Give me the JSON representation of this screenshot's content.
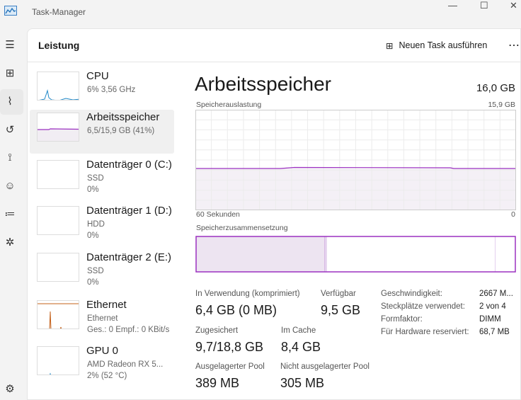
{
  "window": {
    "title": "Task-Manager",
    "minimize": "—",
    "maximize": "☐",
    "close": "✕"
  },
  "colors": {
    "memory": "#9b30c0",
    "cpu": "#1e88c8",
    "ethernet": "#c4601a"
  },
  "nav": [
    "menu-icon",
    "processes-icon",
    "performance-icon",
    "app-history-icon",
    "startup-icon",
    "users-icon",
    "details-icon",
    "services-icon",
    "settings-icon"
  ],
  "header": {
    "title": "Leistung",
    "run_task": "Neuen Task ausführen",
    "more": "⋯"
  },
  "sidebar": [
    {
      "name": "CPU",
      "sub1": "6%  3,56 GHz",
      "sub2": ""
    },
    {
      "name": "Arbeitsspeicher",
      "sub1": "6,5/15,9 GB (41%)",
      "sub2": ""
    },
    {
      "name": "Datenträger 0 (C:)",
      "sub1": "SSD",
      "sub2": "0%"
    },
    {
      "name": "Datenträger 1 (D:)",
      "sub1": "HDD",
      "sub2": "0%"
    },
    {
      "name": "Datenträger 2 (E:)",
      "sub1": "SSD",
      "sub2": "0%"
    },
    {
      "name": "Ethernet",
      "sub1": "Ethernet",
      "sub2": "Ges.: 0 Empf.: 0 KBit/s"
    },
    {
      "name": "GPU 0",
      "sub1": "AMD Radeon RX 5...",
      "sub2": "2%  (52 °C)"
    }
  ],
  "detail": {
    "title": "Arbeitsspeicher",
    "total": "16,0 GB",
    "usage_label": "Speicherauslastung",
    "usage_max": "15,9 GB",
    "time_label": "60 Sekunden",
    "time_min": "0",
    "usage_percent": 41,
    "composition_label": "Speicherzusammensetzung",
    "composition": {
      "in_use": 6.4,
      "modified": 0.1,
      "standby": 8.4,
      "free": 1.0
    },
    "stats": [
      {
        "label": "In Verwendung (komprimiert)",
        "value": "6,4 GB (0 MB)"
      },
      {
        "label": "Verfügbar",
        "value": "9,5 GB"
      },
      {
        "label": "Zugesichert",
        "value": "9,7/18,8 GB"
      },
      {
        "label": "Im Cache",
        "value": "8,4 GB"
      },
      {
        "label": "Ausgelagerter Pool",
        "value": "389 MB"
      },
      {
        "label": "Nicht ausgelagerter Pool",
        "value": "305 MB"
      }
    ],
    "props": [
      {
        "label": "Geschwindigkeit:",
        "value": "2667 M..."
      },
      {
        "label": "Steckplätze verwendet:",
        "value": "2 von 4"
      },
      {
        "label": "Formfaktor:",
        "value": "DIMM"
      },
      {
        "label": "Für Hardware reserviert:",
        "value": "68,7 MB"
      }
    ]
  }
}
